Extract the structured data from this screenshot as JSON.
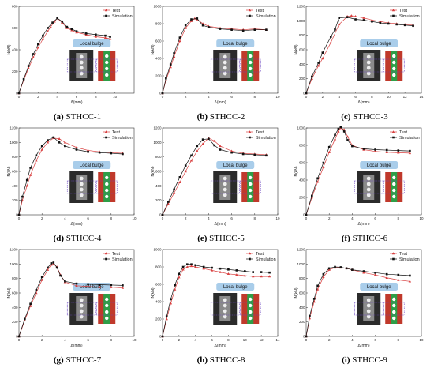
{
  "legend": {
    "test": "Test",
    "simulation": "Simulation"
  },
  "colors": {
    "test": "#d94040",
    "simulation": "#111111",
    "bulge_box": "#a9cdea",
    "specimen_red": "#c0392b",
    "specimen_green": "#2e9e47"
  },
  "chart_data": [
    {
      "type": "line",
      "caption_letter": "(a)",
      "caption_name": "STHCC-1",
      "xlabel": "Δ(mm)",
      "ylabel": "N(kN)",
      "annotation": "Local bulge",
      "xlim": [
        0,
        12
      ],
      "ylim": [
        0,
        800
      ],
      "xticks": [
        0,
        2,
        4,
        6,
        8,
        10
      ],
      "yticks": [
        0,
        200,
        400,
        600,
        800
      ],
      "series": [
        {
          "name": "Test",
          "x": [
            0,
            0.5,
            1,
            1.5,
            2,
            2.5,
            3,
            3.3,
            3.7,
            4,
            4.5,
            5,
            5.5,
            6,
            7,
            8,
            9,
            9.5
          ],
          "y": [
            0,
            120,
            230,
            330,
            420,
            500,
            570,
            610,
            660,
            690,
            650,
            600,
            580,
            560,
            540,
            520,
            510,
            500
          ]
        },
        {
          "name": "Simulation",
          "x": [
            0,
            0.5,
            1,
            1.5,
            2,
            2.5,
            3,
            3.5,
            4,
            4.5,
            5,
            5.5,
            6,
            7,
            8,
            9,
            9.5
          ],
          "y": [
            0,
            130,
            250,
            360,
            450,
            530,
            600,
            650,
            690,
            660,
            610,
            590,
            570,
            550,
            540,
            530,
            520
          ]
        }
      ]
    },
    {
      "type": "line",
      "caption_letter": "(b)",
      "caption_name": "STHCC-2",
      "xlabel": "Δ(mm)",
      "ylabel": "N(kN)",
      "annotation": "Local bulge",
      "xlim": [
        0,
        10
      ],
      "ylim": [
        0,
        1000
      ],
      "xticks": [
        0,
        2,
        4,
        6,
        8,
        10
      ],
      "yticks": [
        0,
        200,
        400,
        600,
        800,
        1000
      ],
      "series": [
        {
          "name": "Test",
          "x": [
            0,
            0.3,
            0.7,
            1,
            1.5,
            2,
            2.5,
            2.8,
            3,
            3.5,
            4,
            5,
            6,
            7,
            8,
            9
          ],
          "y": [
            0,
            150,
            300,
            420,
            600,
            750,
            830,
            860,
            850,
            800,
            770,
            750,
            740,
            730,
            740,
            730
          ]
        },
        {
          "name": "Simulation",
          "x": [
            0,
            0.3,
            0.7,
            1,
            1.5,
            2,
            2.5,
            3,
            3.5,
            4,
            5,
            6,
            7,
            8,
            9
          ],
          "y": [
            0,
            170,
            330,
            460,
            640,
            780,
            850,
            860,
            780,
            760,
            740,
            730,
            720,
            730,
            730
          ]
        }
      ]
    },
    {
      "type": "line",
      "caption_letter": "(c)",
      "caption_name": "STHCC-3",
      "xlabel": "Δ(mm)",
      "ylabel": "N(kN)",
      "annotation": "Local bulge",
      "xlim": [
        0,
        14
      ],
      "ylim": [
        0,
        1200
      ],
      "xticks": [
        0,
        2,
        4,
        6,
        8,
        10,
        12,
        14
      ],
      "yticks": [
        0,
        200,
        400,
        600,
        800,
        1000,
        1200
      ],
      "series": [
        {
          "name": "Test",
          "x": [
            0,
            0.7,
            1.5,
            2,
            3,
            4,
            5,
            5.5,
            6,
            7,
            8,
            9,
            10,
            11,
            12,
            13
          ],
          "y": [
            0,
            200,
            380,
            480,
            700,
            950,
            1060,
            1070,
            1060,
            1040,
            1010,
            990,
            970,
            960,
            950,
            940
          ]
        },
        {
          "name": "Simulation",
          "x": [
            0,
            0.7,
            1.5,
            2,
            3,
            3.5,
            4,
            5,
            6,
            7,
            8,
            9,
            10,
            11,
            12,
            13
          ],
          "y": [
            0,
            230,
            420,
            560,
            780,
            880,
            1040,
            1050,
            1020,
            1010,
            990,
            970,
            960,
            950,
            940,
            930
          ]
        }
      ]
    },
    {
      "type": "line",
      "caption_letter": "(d)",
      "caption_name": "STHCC-4",
      "xlabel": "Δ(mm)",
      "ylabel": "N(kN)",
      "annotation": "Local bulge",
      "xlim": [
        0,
        10
      ],
      "ylim": [
        0,
        1200
      ],
      "xticks": [
        0,
        2,
        4,
        6,
        8,
        10
      ],
      "yticks": [
        0,
        200,
        400,
        600,
        800,
        1000,
        1200
      ],
      "series": [
        {
          "name": "Test",
          "x": [
            0,
            0.3,
            0.7,
            1,
            1.5,
            2,
            2.5,
            3,
            3.5,
            4,
            5,
            6,
            7,
            8,
            9
          ],
          "y": [
            0,
            200,
            400,
            550,
            750,
            900,
            1000,
            1060,
            1050,
            1000,
            930,
            890,
            870,
            860,
            850
          ]
        },
        {
          "name": "Simulation",
          "x": [
            0,
            0.3,
            0.7,
            1,
            1.5,
            2,
            2.5,
            3,
            3.5,
            4,
            5,
            6,
            7,
            8,
            9
          ],
          "y": [
            0,
            250,
            480,
            650,
            820,
            950,
            1030,
            1070,
            1000,
            950,
            900,
            870,
            860,
            850,
            840
          ]
        }
      ]
    },
    {
      "type": "line",
      "caption_letter": "(e)",
      "caption_name": "STHCC-5",
      "xlabel": "Δ(mm)",
      "ylabel": "N(kN)",
      "annotation": "Local bulge",
      "xlim": [
        0,
        10
      ],
      "ylim": [
        0,
        1200
      ],
      "xticks": [
        0,
        2,
        4,
        6,
        8,
        10
      ],
      "yticks": [
        0,
        200,
        400,
        600,
        800,
        1000,
        1200
      ],
      "series": [
        {
          "name": "Test",
          "x": [
            0,
            0.5,
            1,
            1.5,
            2,
            2.5,
            3,
            3.5,
            4,
            4.5,
            5,
            6,
            7,
            8,
            9
          ],
          "y": [
            0,
            150,
            300,
            450,
            600,
            750,
            880,
            980,
            1060,
            1020,
            950,
            880,
            850,
            840,
            830
          ]
        },
        {
          "name": "Simulation",
          "x": [
            0,
            0.5,
            1,
            1.5,
            2,
            2.5,
            3,
            3.5,
            4,
            4.5,
            5,
            6,
            7,
            8,
            9
          ],
          "y": [
            0,
            180,
            350,
            520,
            680,
            820,
            950,
            1040,
            1050,
            960,
            900,
            860,
            840,
            830,
            820
          ]
        }
      ]
    },
    {
      "type": "line",
      "caption_letter": "(f)",
      "caption_name": "STHCC-6",
      "xlabel": "Δ(mm)",
      "ylabel": "N(kN)",
      "annotation": "Local bulge",
      "xlim": [
        0,
        10
      ],
      "ylim": [
        0,
        1000
      ],
      "xticks": [
        0,
        2,
        4,
        6,
        8,
        10
      ],
      "yticks": [
        0,
        200,
        400,
        600,
        800,
        1000
      ],
      "series": [
        {
          "name": "Test",
          "x": [
            0,
            0.5,
            1,
            1.5,
            2,
            2.5,
            2.8,
            3,
            3.3,
            3.6,
            4,
            5,
            6,
            7,
            8,
            9
          ],
          "y": [
            0,
            200,
            380,
            550,
            720,
            870,
            960,
            1000,
            980,
            900,
            800,
            750,
            730,
            720,
            715,
            710
          ]
        },
        {
          "name": "Simulation",
          "x": [
            0,
            0.5,
            1,
            1.5,
            2,
            2.5,
            2.8,
            3,
            3.3,
            3.6,
            4,
            5,
            6,
            7,
            8,
            9
          ],
          "y": [
            0,
            220,
            420,
            600,
            780,
            920,
            990,
            1010,
            960,
            860,
            790,
            760,
            750,
            745,
            740,
            735
          ]
        }
      ]
    },
    {
      "type": "line",
      "caption_letter": "(g)",
      "caption_name": "STHCC-7",
      "xlabel": "Δ(mm)",
      "ylabel": "N(kN)",
      "annotation": "Local bulge",
      "xlim": [
        0,
        10
      ],
      "ylim": [
        0,
        1200
      ],
      "xticks": [
        0,
        2,
        4,
        6,
        8,
        10
      ],
      "yticks": [
        0,
        200,
        400,
        600,
        800,
        1000,
        1200
      ],
      "series": [
        {
          "name": "Test",
          "x": [
            0,
            0.5,
            1,
            1.5,
            2,
            2.5,
            2.8,
            3,
            3.3,
            3.6,
            4,
            5,
            6,
            7,
            8,
            9
          ],
          "y": [
            0,
            220,
            420,
            600,
            780,
            920,
            990,
            1000,
            960,
            850,
            750,
            700,
            690,
            680,
            680,
            670
          ]
        },
        {
          "name": "Simulation",
          "x": [
            0,
            0.5,
            1,
            1.5,
            2,
            2.5,
            2.8,
            3,
            3.3,
            3.6,
            4,
            5,
            6,
            7,
            8,
            9
          ],
          "y": [
            0,
            240,
            450,
            640,
            820,
            950,
            1010,
            1020,
            950,
            840,
            760,
            730,
            720,
            715,
            710,
            705
          ]
        }
      ]
    },
    {
      "type": "line",
      "caption_letter": "(h)",
      "caption_name": "STHCC-8",
      "xlabel": "Δ(mm)",
      "ylabel": "N(kN)",
      "annotation": "Local bulge",
      "xlim": [
        0,
        14
      ],
      "ylim": [
        0,
        1000
      ],
      "xticks": [
        0,
        2,
        4,
        6,
        8,
        10,
        12,
        14
      ],
      "yticks": [
        0,
        200,
        400,
        600,
        800,
        1000
      ],
      "series": [
        {
          "name": "Test",
          "x": [
            0,
            0.5,
            1,
            1.5,
            2,
            2.5,
            3,
            3.5,
            4,
            5,
            6,
            7,
            8,
            9,
            10,
            11,
            12,
            13
          ],
          "y": [
            0,
            200,
            380,
            540,
            680,
            770,
            800,
            810,
            800,
            780,
            760,
            740,
            720,
            710,
            700,
            690,
            690,
            690
          ]
        },
        {
          "name": "Simulation",
          "x": [
            0,
            0.5,
            1,
            1.5,
            2,
            2.5,
            3,
            3.5,
            4,
            5,
            6,
            7,
            8,
            9,
            10,
            11,
            12,
            13
          ],
          "y": [
            0,
            230,
            430,
            590,
            720,
            800,
            830,
            830,
            820,
            800,
            790,
            780,
            770,
            760,
            750,
            740,
            740,
            735
          ]
        }
      ]
    },
    {
      "type": "line",
      "caption_letter": "(i)",
      "caption_name": "STHCC-9",
      "xlabel": "Δ(mm)",
      "ylabel": "N(kN)",
      "annotation": "Local bulge",
      "xlim": [
        0,
        10
      ],
      "ylim": [
        0,
        1200
      ],
      "xticks": [
        0,
        2,
        4,
        6,
        8,
        10
      ],
      "yticks": [
        0,
        200,
        400,
        600,
        800,
        1000,
        1200
      ],
      "series": [
        {
          "name": "Test",
          "x": [
            0,
            0.3,
            0.7,
            1,
            1.5,
            2,
            2.5,
            3,
            3.5,
            4,
            5,
            6,
            7,
            8,
            9
          ],
          "y": [
            0,
            250,
            480,
            650,
            820,
            920,
            950,
            950,
            940,
            920,
            880,
            850,
            810,
            780,
            760
          ]
        },
        {
          "name": "Simulation",
          "x": [
            0,
            0.3,
            0.7,
            1,
            1.5,
            2,
            2.5,
            3,
            3.5,
            4,
            5,
            6,
            7,
            8,
            9
          ],
          "y": [
            0,
            280,
            520,
            700,
            860,
            940,
            960,
            955,
            940,
            920,
            900,
            880,
            860,
            850,
            840
          ]
        }
      ]
    }
  ]
}
